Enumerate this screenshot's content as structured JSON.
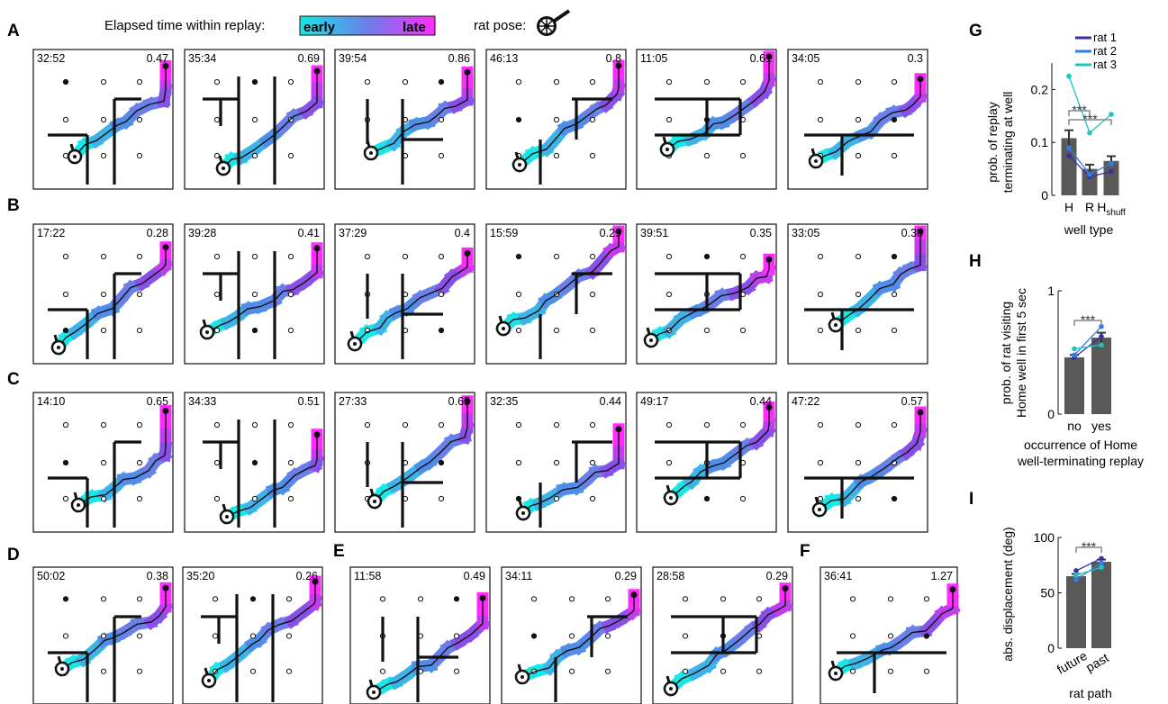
{
  "header": {
    "elapsed_label": "Elapsed time within replay:",
    "early": "early",
    "late": "late",
    "pose_label": "rat pose:"
  },
  "colors": {
    "cyan": "#19e6e6",
    "blue": "#4f8de8",
    "purple": "#8a4fe8",
    "magenta": "#ff2bff",
    "bar": "#595959",
    "rat1": "#3a2fa0",
    "rat2": "#2f7de8",
    "rat3": "#1cc4c4",
    "bracket": "#888888"
  },
  "rows": [
    {
      "letter": "A",
      "panels": [
        {
          "time": "32:52",
          "value": "0.47"
        },
        {
          "time": "35:34",
          "value": "0.69"
        },
        {
          "time": "39:54",
          "value": "0.86"
        },
        {
          "time": "46:13",
          "value": "0.8"
        },
        {
          "time": "11:05",
          "value": "0.61"
        },
        {
          "time": "34:05",
          "value": "0.3"
        }
      ]
    },
    {
      "letter": "B",
      "panels": [
        {
          "time": "17:22",
          "value": "0.28"
        },
        {
          "time": "39:28",
          "value": "0.41"
        },
        {
          "time": "37:29",
          "value": "0.4"
        },
        {
          "time": "15:59",
          "value": "0.29"
        },
        {
          "time": "39:51",
          "value": "0.35"
        },
        {
          "time": "33:05",
          "value": "0.38"
        }
      ]
    },
    {
      "letter": "C",
      "panels": [
        {
          "time": "14:10",
          "value": "0.65"
        },
        {
          "time": "34:33",
          "value": "0.51"
        },
        {
          "time": "27:33",
          "value": "0.65"
        },
        {
          "time": "32:35",
          "value": "0.44"
        },
        {
          "time": "49:17",
          "value": "0.44"
        },
        {
          "time": "47:22",
          "value": "0.57"
        }
      ]
    }
  ],
  "row4": {
    "letters": [
      "D",
      "E",
      "F"
    ],
    "panels": [
      {
        "time": "50:02",
        "value": "0.38"
      },
      {
        "time": "35:20",
        "value": "0.26"
      },
      {
        "time": "11:58",
        "value": "0.49"
      },
      {
        "time": "34:11",
        "value": "0.29"
      },
      {
        "time": "28:58",
        "value": "0.29"
      },
      {
        "time": "36:41",
        "value": "1.27"
      }
    ]
  },
  "chart_data": [
    {
      "type": "bar",
      "panel": "G",
      "categories": [
        "H",
        "R",
        "H"
      ],
      "category_subscript": [
        "",
        "",
        "shuff"
      ],
      "values": [
        0.108,
        0.05,
        0.065
      ],
      "errors": [
        0.015,
        0.008,
        0.009
      ],
      "series": [
        {
          "name": "rat 1",
          "values": [
            0.075,
            0.035,
            0.045
          ]
        },
        {
          "name": "rat 2",
          "values": [
            0.09,
            0.04,
            0.06
          ]
        },
        {
          "name": "rat 3",
          "values": [
            0.225,
            0.118,
            0.153
          ]
        }
      ],
      "ylim": [
        0,
        0.25
      ],
      "yticks": [
        "0",
        "0.1",
        "0.2"
      ],
      "ylabel_line1": "prob. of replay",
      "ylabel_line2": "terminating at well",
      "xlabel": "well type",
      "significance": [
        "***",
        "***"
      ],
      "legend": "top-right"
    },
    {
      "type": "bar",
      "panel": "H",
      "categories": [
        "no",
        "yes"
      ],
      "values": [
        0.46,
        0.62
      ],
      "errors": [
        0.02,
        0.04
      ],
      "series": [
        {
          "name": "rat 1",
          "values": [
            0.46,
            0.63
          ]
        },
        {
          "name": "rat 2",
          "values": [
            0.48,
            0.71
          ]
        },
        {
          "name": "rat 3",
          "values": [
            0.53,
            0.56
          ]
        }
      ],
      "ylim": [
        0,
        1
      ],
      "yticks": [
        "0",
        "1"
      ],
      "ylabel_line1": "prob. of rat visiting",
      "ylabel_line2": "Home well in first 5 sec",
      "xlabel_line1": "occurrence of Home",
      "xlabel_line2": "well-terminating replay",
      "significance": [
        "***"
      ]
    },
    {
      "type": "bar",
      "panel": "I",
      "categories": [
        "future",
        "past"
      ],
      "values": [
        65,
        78
      ],
      "errors": [
        2,
        2
      ],
      "series": [
        {
          "name": "rat 1",
          "values": [
            70,
            81
          ]
        },
        {
          "name": "rat 2",
          "values": [
            62,
            77
          ]
        },
        {
          "name": "rat 3",
          "values": [
            66,
            73
          ]
        }
      ],
      "ylim": [
        0,
        100
      ],
      "yticks": [
        "0",
        "50",
        "100"
      ],
      "ylabel": "abs. displacement (deg)",
      "xlabel": "rat path",
      "significance": [
        "***"
      ]
    }
  ]
}
